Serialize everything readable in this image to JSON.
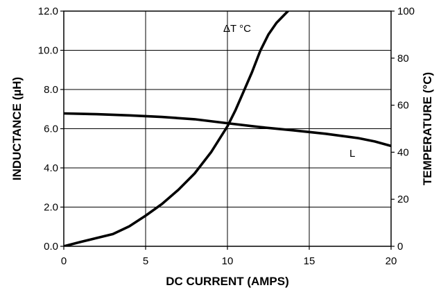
{
  "chart_data": {
    "type": "line",
    "xlabel": "DC CURRENT (AMPS)",
    "ylabel": "INDUCTANCE (µH)",
    "ylabel_right": "TEMPERATURE (°C)",
    "xlim": [
      0,
      20
    ],
    "ylim": [
      0,
      12
    ],
    "ylim_right": [
      0,
      100
    ],
    "grid": true,
    "x_ticks": [
      "0",
      "5",
      "10",
      "15",
      "20"
    ],
    "y_ticks": [
      "0.0",
      "2.0",
      "4.0",
      "6.0",
      "8.0",
      "10.0",
      "12.0"
    ],
    "y_right_ticks": [
      "0",
      "20",
      "40",
      "60",
      "80",
      "100"
    ],
    "series": [
      {
        "name": "L",
        "axis": "left",
        "x": [
          0,
          2,
          4,
          6,
          8,
          10,
          12,
          14,
          16,
          18,
          19,
          20
        ],
        "y": [
          6.78,
          6.74,
          6.68,
          6.6,
          6.48,
          6.28,
          6.08,
          5.92,
          5.74,
          5.52,
          5.35,
          5.12
        ]
      },
      {
        "name": "ΔT °C",
        "axis": "right",
        "x": [
          0,
          1,
          2,
          3,
          4,
          5,
          6,
          7,
          8,
          9,
          10,
          10.5,
          11,
          11.5,
          12,
          12.5,
          13,
          13.7
        ],
        "y": [
          0,
          1.8,
          3.5,
          5.2,
          8.5,
          13,
          18,
          24,
          31,
          40,
          51,
          58,
          66,
          74,
          83,
          90,
          95,
          100
        ]
      }
    ]
  }
}
